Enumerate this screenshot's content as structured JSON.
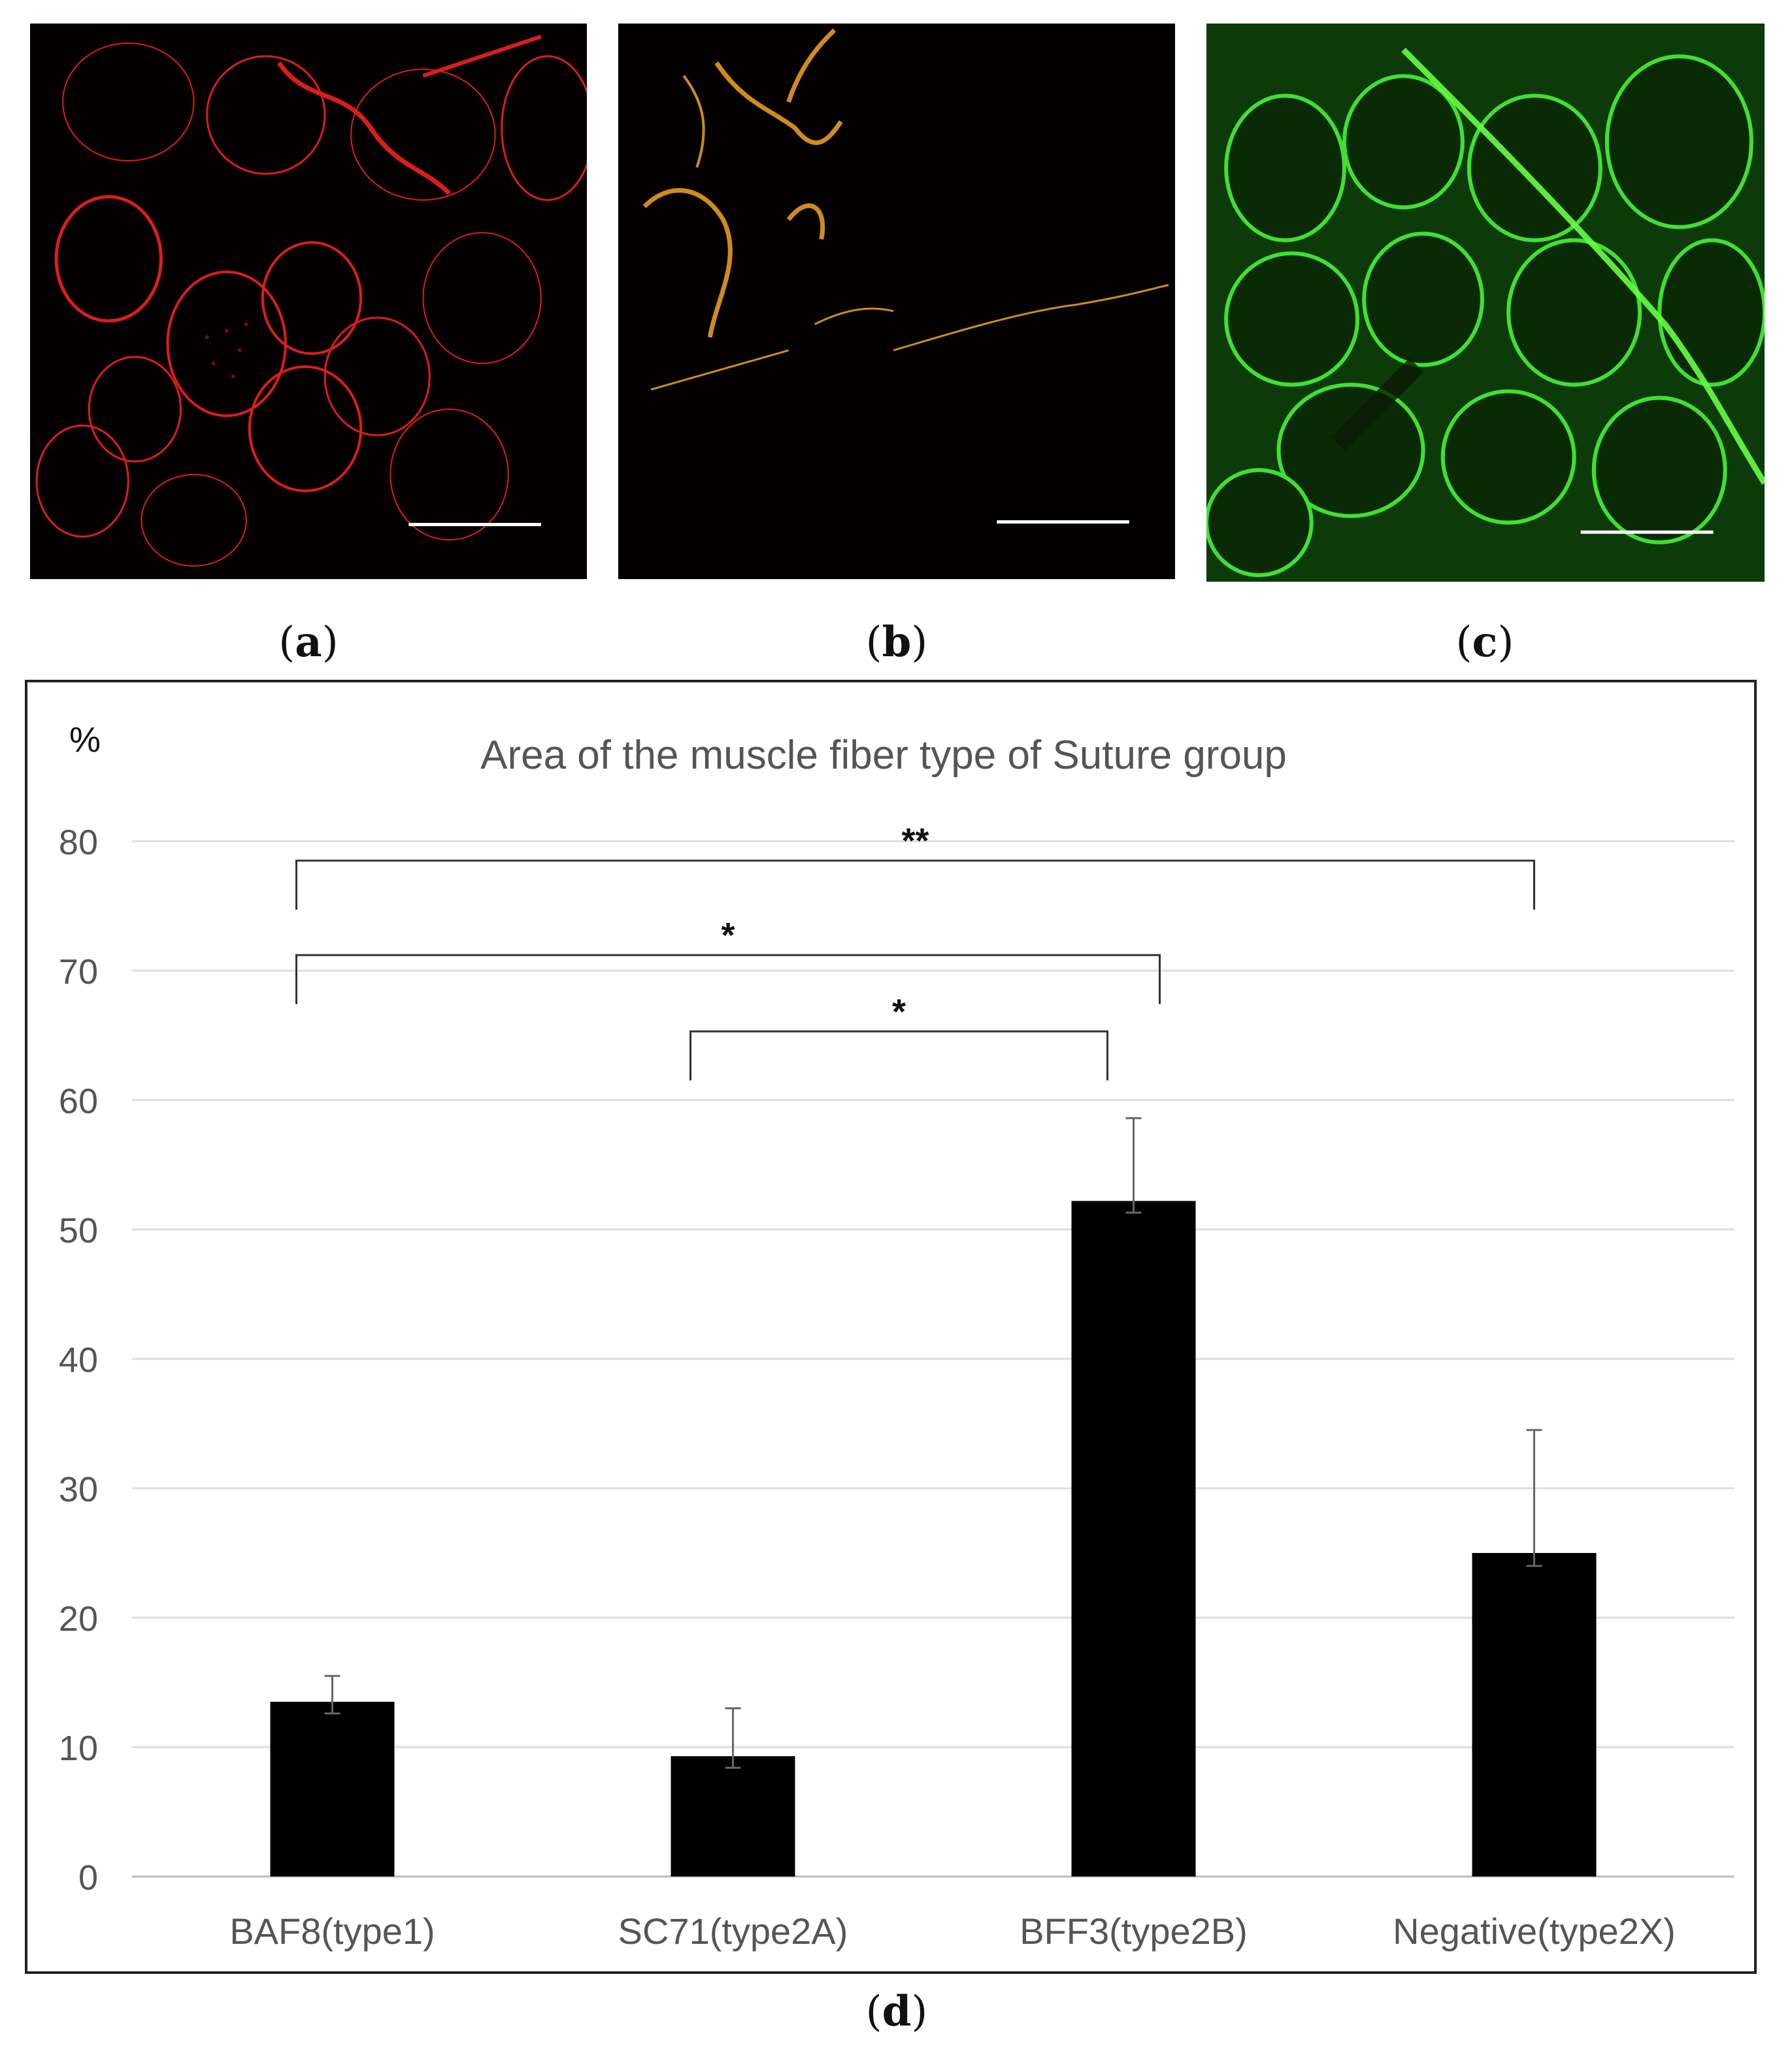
{
  "panels": [
    {
      "id": "a",
      "label_open": "(",
      "label_letter": "a",
      "label_close": ")",
      "stain_color": "#ff2a20"
    },
    {
      "id": "b",
      "label_open": "(",
      "label_letter": "b",
      "label_close": ")",
      "stain_color": "#f0a020"
    },
    {
      "id": "c",
      "label_open": "(",
      "label_letter": "c",
      "label_close": ")",
      "stain_color": "#33dd22"
    }
  ],
  "chart_panel_label": {
    "open": "(",
    "letter": "d",
    "close": ")"
  },
  "chart_data": {
    "type": "bar",
    "title": "Area of the muscle fiber type of Suture group",
    "ylabel": "%",
    "xlabel": "",
    "categories": [
      "BAF8(type1)",
      "SC71(type2A)",
      "BFF3(type2B)",
      "Negative(type2X)"
    ],
    "values": [
      13.5,
      9.3,
      52.2,
      25
    ],
    "error_upper": [
      15.5,
      13.0,
      58.6,
      34.5
    ],
    "error_lower": [
      12.6,
      8.4,
      51.3,
      24.0
    ],
    "ylim": [
      0,
      80
    ],
    "yticks": [
      0,
      10,
      20,
      30,
      40,
      50,
      60,
      70,
      80
    ],
    "grid": true,
    "bar_color": "#000000",
    "significance": [
      {
        "from": 0,
        "to": 3,
        "label": "**",
        "level": 78.5
      },
      {
        "from": 0,
        "to": 2,
        "label": "*",
        "level": 71.2
      },
      {
        "from": 1,
        "to": 2,
        "label": "*",
        "level": 65.3
      }
    ]
  }
}
